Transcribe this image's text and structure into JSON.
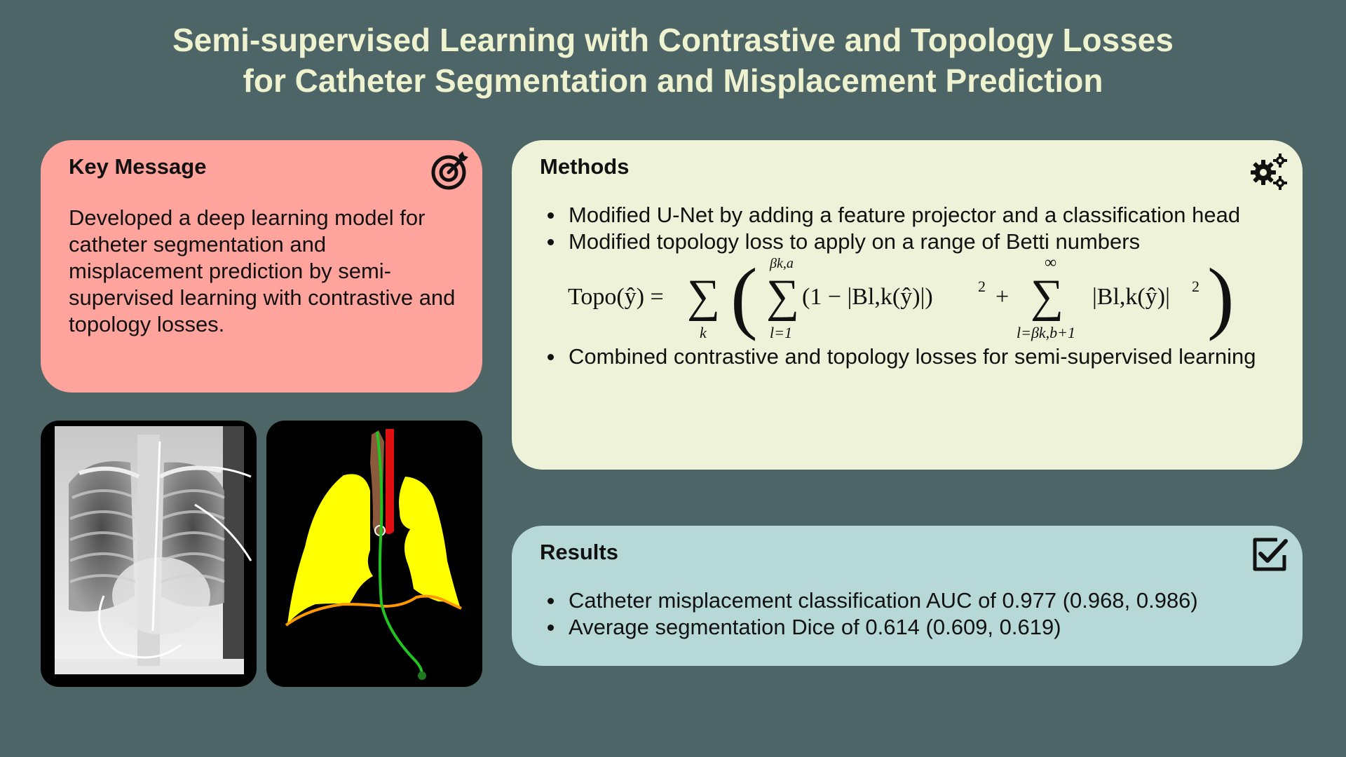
{
  "poster": {
    "title_line1": "Semi-supervised Learning with Contrastive and Topology Losses",
    "title_line2": "for Catheter Segmentation and Misplacement Prediction"
  },
  "key_message": {
    "heading": "Key Message",
    "icon": "target-icon",
    "line1": "Developed a deep learning model for",
    "line2": "catheter segmentation and",
    "line3": "misplacement prediction by semi-",
    "line4": "supervised learning with contrastive and",
    "line5": "topology losses."
  },
  "methods": {
    "heading": "Methods",
    "icon": "gears-icon",
    "bullets": [
      "Modified U-Net by adding a feature projector and a classification head",
      "Modified topology loss to apply on a range of Betti numbers",
      "Combined contrastive and topology losses for semi-supervised learning"
    ],
    "formula": {
      "lhs": "Topo(ŷ) =",
      "sum_outer_sub": "k",
      "sum1_sup": "βk,a",
      "sum1_sub": "l=1",
      "term1": "(1 − |Bl,k(ŷ)|)",
      "power": "2",
      "plus": "+",
      "sum2_sup": "∞",
      "sum2_sub": "l=βk,b+1",
      "term2": "|Bl,k(ŷ)|"
    }
  },
  "results": {
    "heading": "Results",
    "icon": "checkbox-icon",
    "bullets": [
      "Catheter misplacement classification AUC of 0.977 (0.968, 0.986)",
      "Average segmentation Dice of 0.614 (0.609, 0.619)"
    ]
  },
  "figures": {
    "xray": "chest-xray-image",
    "segmentation": "segmentation-mask-image",
    "colors": {
      "lungs": "#ffff00",
      "trachea": "#8b5a3c",
      "catheter": "#22c422",
      "vessel": "#e01010",
      "diaphragm": "#ff9900"
    }
  }
}
